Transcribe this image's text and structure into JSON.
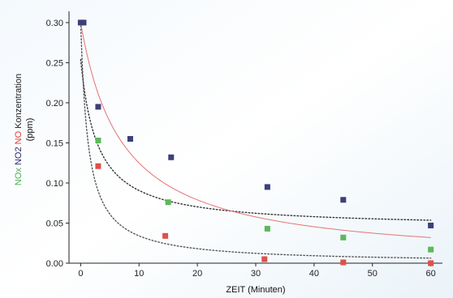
{
  "chart_data": {
    "type": "scatter",
    "xlabel": "ZEIT (Minuten)",
    "ylabel_parts": [
      {
        "text": "NOx",
        "color": "#4caf50"
      },
      {
        "text": "NO2",
        "color": "#2a2a6a"
      },
      {
        "text": "NO",
        "color": "#e53935"
      },
      {
        "text": "Konzentration",
        "color": "#222222"
      }
    ],
    "ylabel_unit": "(ppm)",
    "xlim": [
      -2,
      62
    ],
    "ylim": [
      0,
      0.31
    ],
    "xticks": [
      0,
      10,
      20,
      30,
      40,
      50,
      60
    ],
    "yticks": [
      0.0,
      0.05,
      0.1,
      0.15,
      0.2,
      0.25,
      0.3
    ],
    "ytick_labels": [
      "0.00",
      "0.05",
      "0.10",
      "0.15",
      "0.20",
      "0.25",
      "0.30"
    ],
    "grid": false,
    "series": [
      {
        "key": "no2",
        "color": "#3d3f7a",
        "fit": {
          "color": "#333333",
          "style": "dotted",
          "c": 0.044,
          "d": 0.21,
          "k": 0.35
        },
        "points": [
          {
            "x": 0,
            "y": 0.3
          },
          {
            "x": 0.5,
            "y": 0.3
          },
          {
            "x": 3,
            "y": 0.195
          },
          {
            "x": 8.5,
            "y": 0.155
          },
          {
            "x": 15.5,
            "y": 0.132
          },
          {
            "x": 32,
            "y": 0.095
          },
          {
            "x": 45,
            "y": 0.079
          },
          {
            "x": 60,
            "y": 0.047
          }
        ]
      },
      {
        "key": "nox",
        "color": "#5cb85c",
        "fit": {
          "color": "#555555",
          "style": "dotted",
          "c": 0.0,
          "d": 0.3,
          "k": 0.78
        },
        "points": [
          {
            "x": 3,
            "y": 0.153
          },
          {
            "x": 15,
            "y": 0.076
          },
          {
            "x": 32,
            "y": 0.043
          },
          {
            "x": 45,
            "y": 0.032
          },
          {
            "x": 60,
            "y": 0.017
          }
        ]
      },
      {
        "key": "no",
        "color": "#e0504a",
        "fit": {
          "color": "#e57373",
          "style": "solid",
          "c": 0.0,
          "d": 0.3,
          "k": 0.14
        },
        "points": [
          {
            "x": 3,
            "y": 0.121
          },
          {
            "x": 14.5,
            "y": 0.034
          },
          {
            "x": 31.5,
            "y": 0.005
          },
          {
            "x": 45,
            "y": 0.001
          },
          {
            "x": 60,
            "y": 0.0
          }
        ]
      }
    ]
  }
}
